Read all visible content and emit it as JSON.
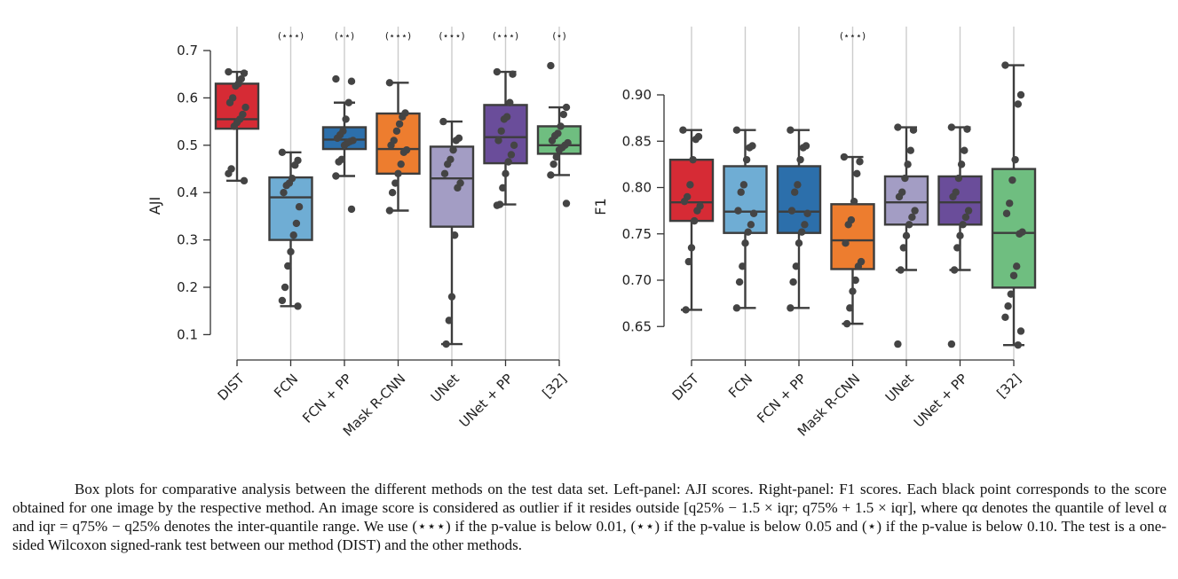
{
  "caption": "Box plots for comparative analysis between the different methods on the test data set. Left-panel: AJI scores. Right-panel: F1 scores. Each black point corresponds to the score obtained for one image by the respective method. An image score is considered as outlier if it resides outside [q25% − 1.5 × iqr; q75% + 1.5 × iqr], where qα denotes the quantile of level α and iqr = q75% − q25% denotes the inter-quantile range. We use (⋆⋆⋆) if the p-value is below 0.01, (⋆⋆) if the p-value is below 0.05 and (⋆) if the p-value is below 0.10. The test is a one-sided Wilcoxon signed-rank test between our method (DIST) and the other methods.",
  "chart_data": [
    {
      "type": "box",
      "ylabel": "AJI",
      "ylim": [
        0.05,
        0.7
      ],
      "yticks": [
        "0.1",
        "0.2",
        "0.3",
        "0.4",
        "0.5",
        "0.6",
        "0.7"
      ],
      "grid": "vertical",
      "categories": [
        "DIST",
        "FCN",
        "FCN + PP",
        "Mask R-CNN",
        "UNet",
        "UNet + PP",
        "[32]"
      ],
      "significance": [
        "",
        "(⋆⋆⋆)",
        "(⋆⋆)",
        "(⋆⋆⋆)",
        "(⋆⋆⋆)",
        "(⋆⋆⋆)",
        "(⋆)"
      ],
      "colors": [
        "#d62b35",
        "#6fadd4",
        "#2c6fab",
        "#ed7d2f",
        "#a39dc4",
        "#6a4d9a",
        "#6fbe80"
      ],
      "boxes": [
        {
          "min": 0.425,
          "q1": 0.535,
          "median": 0.555,
          "q3": 0.63,
          "max": 0.655
        },
        {
          "min": 0.16,
          "q1": 0.3,
          "median": 0.39,
          "q3": 0.432,
          "max": 0.485
        },
        {
          "min": 0.435,
          "q1": 0.492,
          "median": 0.512,
          "q3": 0.538,
          "max": 0.59
        },
        {
          "min": 0.362,
          "q1": 0.44,
          "median": 0.492,
          "q3": 0.567,
          "max": 0.632
        },
        {
          "min": 0.08,
          "q1": 0.328,
          "median": 0.43,
          "q3": 0.497,
          "max": 0.55
        },
        {
          "min": 0.375,
          "q1": 0.462,
          "median": 0.517,
          "q3": 0.585,
          "max": 0.655
        },
        {
          "min": 0.437,
          "q1": 0.482,
          "median": 0.5,
          "q3": 0.54,
          "max": 0.58
        }
      ],
      "points": [
        [
          0.655,
          0.652,
          0.64,
          0.63,
          0.625,
          0.6,
          0.59,
          0.58,
          0.565,
          0.555,
          0.548,
          0.54,
          0.45,
          0.44,
          0.425
        ],
        [
          0.485,
          0.468,
          0.458,
          0.43,
          0.42,
          0.415,
          0.4,
          0.37,
          0.335,
          0.31,
          0.275,
          0.245,
          0.2,
          0.172,
          0.16
        ],
        [
          0.64,
          0.635,
          0.59,
          0.555,
          0.53,
          0.522,
          0.515,
          0.51,
          0.508,
          0.505,
          0.5,
          0.47,
          0.465,
          0.435,
          0.365
        ],
        [
          0.632,
          0.568,
          0.56,
          0.545,
          0.53,
          0.51,
          0.5,
          0.49,
          0.485,
          0.46,
          0.44,
          0.42,
          0.4,
          0.362
        ],
        [
          0.55,
          0.515,
          0.51,
          0.49,
          0.47,
          0.46,
          0.44,
          0.42,
          0.41,
          0.31,
          0.18,
          0.13,
          0.08
        ],
        [
          0.655,
          0.65,
          0.59,
          0.56,
          0.555,
          0.53,
          0.51,
          0.5,
          0.48,
          0.465,
          0.44,
          0.41,
          0.375,
          0.373
        ],
        [
          0.668,
          0.58,
          0.565,
          0.54,
          0.525,
          0.52,
          0.51,
          0.505,
          0.5,
          0.495,
          0.49,
          0.475,
          0.46,
          0.437,
          0.377
        ]
      ]
    },
    {
      "type": "box",
      "ylabel": "F1",
      "ylim": [
        0.615,
        0.945
      ],
      "yticks": [
        "0.65",
        "0.70",
        "0.75",
        "0.80",
        "0.85",
        "0.90"
      ],
      "grid": "vertical",
      "categories": [
        "DIST",
        "FCN",
        "FCN + PP",
        "Mask R-CNN",
        "UNet",
        "UNet + PP",
        "[32]"
      ],
      "significance": [
        "",
        "",
        "",
        "(⋆⋆⋆)",
        "",
        "",
        ""
      ],
      "colors": [
        "#d62b35",
        "#6fadd4",
        "#2c6fab",
        "#ed7d2f",
        "#a39dc4",
        "#6a4d9a",
        "#6fbe80"
      ],
      "boxes": [
        {
          "min": 0.668,
          "q1": 0.764,
          "median": 0.784,
          "q3": 0.83,
          "max": 0.862
        },
        {
          "min": 0.67,
          "q1": 0.751,
          "median": 0.774,
          "q3": 0.823,
          "max": 0.862
        },
        {
          "min": 0.67,
          "q1": 0.751,
          "median": 0.774,
          "q3": 0.823,
          "max": 0.862
        },
        {
          "min": 0.653,
          "q1": 0.712,
          "median": 0.743,
          "q3": 0.782,
          "max": 0.833
        },
        {
          "min": 0.711,
          "q1": 0.76,
          "median": 0.784,
          "q3": 0.812,
          "max": 0.865
        },
        {
          "min": 0.711,
          "q1": 0.76,
          "median": 0.784,
          "q3": 0.812,
          "max": 0.865
        },
        {
          "min": 0.63,
          "q1": 0.692,
          "median": 0.751,
          "q3": 0.82,
          "max": 0.932
        }
      ],
      "points": [
        [
          0.862,
          0.855,
          0.852,
          0.83,
          0.803,
          0.79,
          0.785,
          0.78,
          0.775,
          0.764,
          0.735,
          0.72,
          0.668
        ],
        [
          0.862,
          0.845,
          0.843,
          0.83,
          0.803,
          0.795,
          0.775,
          0.772,
          0.76,
          0.752,
          0.74,
          0.715,
          0.698,
          0.67
        ],
        [
          0.862,
          0.845,
          0.843,
          0.83,
          0.803,
          0.795,
          0.775,
          0.772,
          0.76,
          0.752,
          0.74,
          0.715,
          0.698,
          0.67
        ],
        [
          0.833,
          0.828,
          0.815,
          0.785,
          0.765,
          0.76,
          0.74,
          0.72,
          0.715,
          0.7,
          0.688,
          0.67,
          0.653
        ],
        [
          0.865,
          0.862,
          0.84,
          0.825,
          0.81,
          0.795,
          0.79,
          0.775,
          0.768,
          0.76,
          0.748,
          0.735,
          0.711,
          0.631
        ],
        [
          0.865,
          0.863,
          0.84,
          0.825,
          0.81,
          0.795,
          0.79,
          0.775,
          0.768,
          0.76,
          0.748,
          0.735,
          0.711,
          0.631
        ],
        [
          0.932,
          0.9,
          0.89,
          0.83,
          0.808,
          0.783,
          0.772,
          0.752,
          0.75,
          0.715,
          0.705,
          0.685,
          0.672,
          0.66,
          0.645,
          0.63
        ]
      ]
    }
  ]
}
